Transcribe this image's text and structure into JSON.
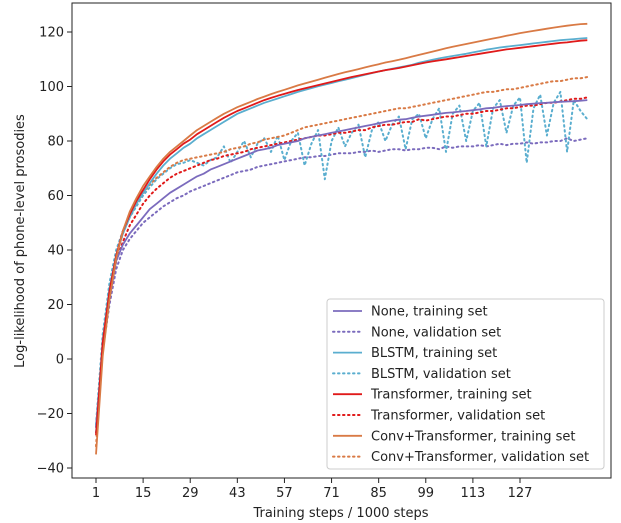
{
  "chart_data": {
    "type": "line",
    "title": "",
    "xlabel": "Training steps / 1000 steps",
    "ylabel": "Log-likelihood of phone-level prosodies",
    "xlim": [
      -6,
      154
    ],
    "ylim": [
      -42,
      130
    ],
    "xticks": [
      1,
      15,
      29,
      43,
      57,
      71,
      85,
      99,
      113,
      127
    ],
    "yticks": [
      -40,
      -20,
      0,
      20,
      40,
      60,
      80,
      100,
      120
    ],
    "grid": false,
    "legend_position": "bottom-right",
    "x": [
      1,
      3,
      5,
      7,
      9,
      11,
      13,
      15,
      17,
      19,
      21,
      23,
      25,
      27,
      29,
      31,
      33,
      35,
      37,
      39,
      41,
      43,
      45,
      47,
      49,
      51,
      53,
      55,
      57,
      59,
      61,
      63,
      65,
      67,
      69,
      71,
      73,
      75,
      77,
      79,
      81,
      83,
      85,
      87,
      89,
      91,
      93,
      95,
      97,
      99,
      101,
      103,
      105,
      107,
      109,
      111,
      113,
      115,
      117,
      119,
      121,
      123,
      125,
      127,
      129,
      131,
      133,
      135,
      137,
      139,
      141,
      143,
      145,
      147
    ],
    "series": [
      {
        "name": "None, training set",
        "color": "#7b6bbd",
        "style": "solid",
        "values": [
          -25,
          4,
          22,
          36,
          42,
          46,
          49,
          52,
          55,
          57,
          59,
          61,
          62.5,
          64,
          65.5,
          67,
          68,
          69.5,
          70.5,
          71.5,
          72.5,
          73.5,
          74.5,
          75.5,
          76.5,
          77,
          77.5,
          78.5,
          79,
          79.5,
          80,
          81,
          81.5,
          82,
          82.5,
          83,
          83.5,
          84,
          84.5,
          85,
          85.5,
          86,
          86.5,
          87,
          87.5,
          87.8,
          88,
          88.5,
          89,
          89.3,
          89.6,
          90,
          90.3,
          90.5,
          90.8,
          91,
          91.3,
          91.6,
          92,
          92.2,
          92.5,
          92.8,
          93,
          93.2,
          93.5,
          93.7,
          93.9,
          94,
          94.2,
          94.4,
          94.5,
          94.6,
          94.8,
          95
        ]
      },
      {
        "name": "None, validation set",
        "color": "#7b6bbd",
        "style": "dotted",
        "values": [
          -25,
          3,
          20,
          33,
          40,
          44,
          47,
          50,
          52,
          54,
          56,
          57.5,
          59,
          60,
          61.5,
          62.5,
          63.5,
          64.5,
          65.5,
          66.5,
          67.5,
          68.5,
          69,
          69.5,
          70.5,
          71,
          71.5,
          72,
          72.5,
          73,
          73.5,
          74,
          74,
          74.5,
          74.5,
          75,
          75.5,
          75.5,
          75.5,
          76,
          76,
          76.5,
          76,
          76.5,
          77,
          77,
          76.5,
          77,
          77,
          77.5,
          77.5,
          77,
          78,
          77.5,
          78,
          78,
          78,
          78.5,
          78,
          78.5,
          79,
          78.5,
          79,
          79,
          79.5,
          79,
          79.5,
          79.5,
          80,
          80,
          81,
          80,
          80.5,
          81
        ]
      },
      {
        "name": "BLSTM, training set",
        "color": "#5aaecf",
        "style": "solid",
        "values": [
          -27,
          7,
          26,
          38,
          46,
          52,
          57,
          61,
          64.5,
          68,
          71,
          73.5,
          75.5,
          77.5,
          79,
          81,
          82.5,
          84,
          85.5,
          87,
          88.5,
          90,
          91,
          92,
          93,
          94,
          94.8,
          95.6,
          96.4,
          97.2,
          98,
          98.7,
          99.4,
          100.1,
          100.7,
          101.3,
          101.9,
          102.5,
          103.1,
          103.7,
          104.3,
          104.9,
          105.5,
          106,
          106.5,
          107,
          107.5,
          108,
          108.7,
          109.3,
          109.8,
          110.3,
          110.8,
          111.2,
          111.6,
          112,
          112.5,
          113,
          113.5,
          113.9,
          114.3,
          114.6,
          114.9,
          115.2,
          115.5,
          115.8,
          116.1,
          116.4,
          116.7,
          117,
          117.2,
          117.4,
          117.6,
          117.8
        ]
      },
      {
        "name": "BLSTM, validation set",
        "color": "#5aaecf",
        "style": "dotted",
        "values": [
          -24,
          9,
          28,
          40,
          47,
          52,
          56,
          60,
          63,
          66,
          68,
          70,
          71.5,
          72,
          73,
          72,
          71,
          73,
          74,
          78,
          72,
          76,
          80,
          74,
          79,
          81,
          76,
          82,
          73,
          80,
          83,
          71,
          79,
          84,
          66,
          80,
          85,
          78,
          83,
          86,
          74,
          84,
          87,
          80,
          86,
          89,
          77,
          88,
          90,
          81,
          88,
          92,
          76,
          90,
          93,
          80,
          91,
          94,
          78,
          92,
          95,
          83,
          93,
          96,
          72,
          92,
          97,
          82,
          94,
          98,
          76,
          95,
          91,
          88
        ]
      },
      {
        "name": "Transformer, training set",
        "color": "#e01a1a",
        "style": "solid",
        "values": [
          -28,
          6,
          25,
          38,
          47,
          53,
          58,
          62,
          66,
          69.5,
          72.5,
          75,
          77,
          79,
          80.5,
          82.5,
          84,
          85.5,
          87,
          88.5,
          89.8,
          91,
          92,
          93,
          94,
          95,
          95.8,
          96.6,
          97.3,
          98,
          98.7,
          99.3,
          99.9,
          100.5,
          101.1,
          101.7,
          102.3,
          102.9,
          103.5,
          104,
          104.5,
          105,
          105.5,
          106,
          106.4,
          106.8,
          107.3,
          107.8,
          108.3,
          108.8,
          109.2,
          109.6,
          110,
          110.4,
          110.8,
          111.2,
          111.6,
          112,
          112.4,
          112.8,
          113.2,
          113.6,
          113.9,
          114.2,
          114.5,
          114.8,
          115.1,
          115.4,
          115.7,
          116,
          116.2,
          116.5,
          116.8,
          117
        ]
      },
      {
        "name": "Transformer, validation set",
        "color": "#e01a1a",
        "style": "dotted",
        "values": [
          -27,
          5,
          23,
          36,
          43,
          49,
          53,
          57,
          60,
          62.5,
          64.5,
          66.5,
          68,
          69,
          70,
          71,
          72,
          73,
          73.5,
          74.5,
          75,
          75.5,
          76,
          77,
          77.5,
          78,
          78.5,
          79,
          79.5,
          80,
          80.5,
          81,
          81.5,
          82,
          82,
          82.5,
          83,
          83,
          83.5,
          84,
          84,
          85,
          85.5,
          86,
          86,
          86.5,
          87,
          87,
          88,
          87.5,
          88,
          88.5,
          89,
          89,
          89.5,
          90,
          90,
          90.5,
          91,
          91,
          91.5,
          92,
          92,
          92.5,
          93,
          93,
          93.5,
          94,
          94,
          94.5,
          95,
          95.5,
          95.5,
          96
        ]
      },
      {
        "name": "Conv+Transformer, training set",
        "color": "#d97a45",
        "style": "solid",
        "values": [
          -35,
          1,
          22,
          37,
          47,
          54,
          59,
          63.5,
          67,
          70.5,
          73.5,
          76,
          78,
          80,
          82,
          84,
          85.5,
          87,
          88.5,
          90,
          91.2,
          92.4,
          93.4,
          94.4,
          95.4,
          96.3,
          97.2,
          98,
          98.8,
          99.6,
          100.4,
          101.1,
          101.8,
          102.5,
          103.2,
          103.9,
          104.6,
          105.2,
          105.8,
          106.4,
          107,
          107.6,
          108.2,
          108.8,
          109.3,
          109.8,
          110.4,
          111,
          111.6,
          112.2,
          112.8,
          113.4,
          114,
          114.6,
          115.1,
          115.6,
          116.1,
          116.6,
          117.1,
          117.6,
          118.1,
          118.6,
          119.1,
          119.6,
          120,
          120.4,
          120.8,
          121.2,
          121.6,
          122,
          122.3,
          122.6,
          122.9,
          123
        ]
      },
      {
        "name": "Conv+Transformer, validation set",
        "color": "#d97a45",
        "style": "dotted",
        "values": [
          -32,
          4,
          24,
          38,
          46,
          52,
          57,
          61,
          64,
          66.5,
          68.5,
          70.5,
          72,
          73,
          73.5,
          74,
          74.5,
          75,
          75.5,
          76,
          77,
          77.5,
          78,
          79,
          79.5,
          80.5,
          81,
          81.5,
          82,
          83,
          84,
          85,
          85.5,
          86,
          86.5,
          87,
          87.5,
          88,
          88.5,
          89,
          89.5,
          90,
          90.5,
          91,
          91.5,
          92,
          92,
          92.5,
          93,
          93.5,
          94,
          94.5,
          95,
          95.5,
          96,
          96.5,
          97,
          97.5,
          98,
          98,
          98.5,
          99,
          99,
          99.5,
          100,
          100.5,
          101,
          101.5,
          102,
          102,
          102.5,
          103,
          103,
          103.5
        ]
      }
    ]
  }
}
